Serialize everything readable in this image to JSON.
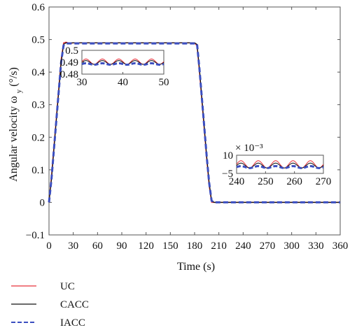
{
  "chart_data": {
    "type": "line",
    "xlabel": "Time (s)",
    "ylabel": "Angular velocity ω",
    "ylabel_subscript": "y",
    "ylabel_unit": " (°/s)",
    "xlim": [
      0,
      360
    ],
    "ylim": [
      -0.1,
      0.6
    ],
    "xticks": [
      0,
      30,
      60,
      90,
      120,
      150,
      180,
      210,
      240,
      270,
      300,
      330,
      360
    ],
    "yticks": [
      -0.1,
      0,
      0.1,
      0.2,
      0.3,
      0.4,
      0.5,
      0.6
    ],
    "series": [
      {
        "name": "UC",
        "color": "#e8303a",
        "style": "solid",
        "x": [
          0,
          3,
          6,
          9,
          12,
          15,
          18,
          21,
          24,
          27,
          30,
          45,
          60,
          90,
          120,
          150,
          180,
          183,
          186,
          189,
          192,
          195,
          198,
          201,
          204,
          210,
          240,
          270,
          300,
          330,
          360
        ],
        "y": [
          0,
          0.08,
          0.17,
          0.26,
          0.35,
          0.44,
          0.49,
          0.492,
          0.49,
          0.488,
          0.49,
          0.49,
          0.49,
          0.49,
          0.49,
          0.49,
          0.49,
          0.48,
          0.4,
          0.31,
          0.22,
          0.13,
          0.05,
          0.0,
          0.0,
          0.0,
          0.0,
          0.0,
          0.0,
          0.0,
          0.0
        ]
      },
      {
        "name": "CACC",
        "color": "#111111",
        "style": "solid",
        "x": [
          0,
          3,
          6,
          9,
          12,
          15,
          18,
          21,
          24,
          27,
          30,
          45,
          60,
          90,
          120,
          150,
          180,
          183,
          186,
          189,
          192,
          195,
          198,
          201,
          204,
          210,
          240,
          270,
          300,
          330,
          360
        ],
        "y": [
          0,
          0.07,
          0.16,
          0.25,
          0.34,
          0.43,
          0.485,
          0.49,
          0.489,
          0.49,
          0.49,
          0.49,
          0.49,
          0.49,
          0.49,
          0.49,
          0.49,
          0.485,
          0.41,
          0.32,
          0.23,
          0.14,
          0.06,
          0.005,
          0.0,
          0.0,
          0.0,
          0.0,
          0.0,
          0.0,
          0.0
        ]
      },
      {
        "name": "IACC",
        "color": "#3b4ec0",
        "style": "dashed",
        "x": [
          0,
          3,
          6,
          9,
          12,
          15,
          18,
          21,
          24,
          27,
          30,
          45,
          60,
          90,
          120,
          150,
          180,
          183,
          186,
          189,
          192,
          195,
          198,
          201,
          204,
          210,
          240,
          270,
          300,
          330,
          360
        ],
        "y": [
          0,
          0.07,
          0.16,
          0.25,
          0.34,
          0.43,
          0.482,
          0.488,
          0.488,
          0.488,
          0.488,
          0.488,
          0.488,
          0.488,
          0.488,
          0.488,
          0.488,
          0.487,
          0.41,
          0.32,
          0.23,
          0.14,
          0.06,
          0.005,
          0.0,
          0.0,
          0.0,
          0.0,
          0.0,
          0.0,
          0.0
        ]
      }
    ],
    "insets": [
      {
        "xlim": [
          30,
          50
        ],
        "ylim": [
          0.48,
          0.5
        ],
        "xticks": [
          30,
          40,
          50
        ],
        "yticks": [
          0.5,
          0.49,
          0.48
        ],
        "series": [
          {
            "name": "UC",
            "period": 4,
            "mean": 0.4905,
            "amp": 0.0022
          },
          {
            "name": "CACC",
            "period": 4,
            "mean": 0.4898,
            "amp": 0.0016
          },
          {
            "name": "IACC",
            "period": 4,
            "mean": 0.4885,
            "amp": 0.0006
          }
        ]
      },
      {
        "xlim": [
          240,
          270
        ],
        "ylim": [
          -5,
          10
        ],
        "scale_label": "× 10⁻³",
        "xticks": [
          240,
          250,
          260,
          270
        ],
        "yticks": [
          10,
          -5
        ],
        "series": [
          {
            "name": "UC",
            "period": 6,
            "mean": 2.5,
            "amp": 3.0
          },
          {
            "name": "CACC",
            "period": 6,
            "mean": 1.5,
            "amp": 2.0
          },
          {
            "name": "IACC",
            "period": 6,
            "mean": 0.2,
            "amp": 0.8
          }
        ]
      }
    ],
    "legend": {
      "placement": "bottom-left",
      "entries": [
        "UC",
        "CACC",
        "IACC"
      ]
    }
  }
}
